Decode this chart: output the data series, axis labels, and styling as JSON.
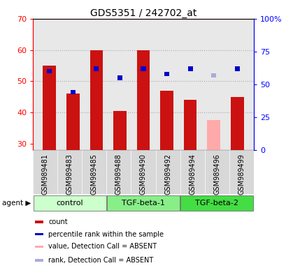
{
  "title": "GDS5351 / 242702_at",
  "samples": [
    "GSM989481",
    "GSM989483",
    "GSM989485",
    "GSM989488",
    "GSM989490",
    "GSM989492",
    "GSM989494",
    "GSM989496",
    "GSM989499"
  ],
  "groups": [
    {
      "name": "control",
      "indices": [
        0,
        1,
        2
      ],
      "color": "#ccffcc"
    },
    {
      "name": "TGF-beta-1",
      "indices": [
        3,
        4,
        5
      ],
      "color": "#88ee88"
    },
    {
      "name": "TGF-beta-2",
      "indices": [
        6,
        7,
        8
      ],
      "color": "#44dd44"
    }
  ],
  "count_values": [
    55.0,
    46.0,
    60.0,
    40.5,
    60.0,
    47.0,
    44.0,
    null,
    45.0
  ],
  "count_absent": [
    null,
    null,
    null,
    null,
    null,
    null,
    null,
    37.5,
    null
  ],
  "rank_pct": [
    60.0,
    44.0,
    62.0,
    55.0,
    62.0,
    58.0,
    62.0,
    null,
    62.0
  ],
  "rank_absent_pct": [
    null,
    null,
    null,
    null,
    null,
    null,
    null,
    57.0,
    null
  ],
  "ylim_left": [
    28,
    70
  ],
  "ylim_right": [
    0,
    100
  ],
  "yticks_left": [
    30,
    40,
    50,
    60,
    70
  ],
  "yticks_right": [
    0,
    25,
    50,
    75,
    100
  ],
  "bar_bottom": 28,
  "bar_width": 0.55,
  "count_color": "#cc1111",
  "rank_color": "#0000cc",
  "count_absent_color": "#ffaaaa",
  "rank_absent_color": "#aaaadd",
  "bg_color": "#ffffff",
  "plot_bg_color": "#e8e8e8",
  "label_count": "count",
  "label_rank": "percentile rank within the sample",
  "label_count_absent": "value, Detection Call = ABSENT",
  "label_rank_absent": "rank, Detection Call = ABSENT",
  "title_fontsize": 10,
  "tick_fontsize": 8,
  "xlabel_fontsize": 7,
  "legend_fontsize": 7,
  "group_fontsize": 8
}
